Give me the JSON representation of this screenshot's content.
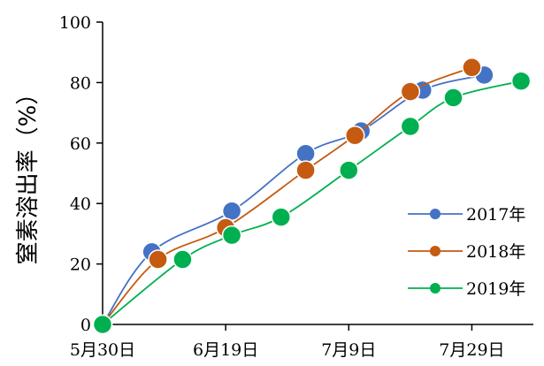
{
  "chart_data": {
    "type": "line",
    "ylabel": "窒素溶出率（%）",
    "xlabel": "",
    "x_ticks": [
      {
        "label": "5月30日",
        "day": 0
      },
      {
        "label": "6月19日",
        "day": 20
      },
      {
        "label": "7月9日",
        "day": 40
      },
      {
        "label": "7月29日",
        "day": 60
      }
    ],
    "xlim": [
      0,
      70
    ],
    "ylim": [
      0,
      100
    ],
    "yticks": [
      0,
      20,
      40,
      60,
      80,
      100
    ],
    "legend_position": "right",
    "series": [
      {
        "name": "2017年",
        "color": "#4472C4",
        "points": [
          [
            0,
            0
          ],
          [
            8,
            24
          ],
          [
            21,
            37.5
          ],
          [
            33,
            56.5
          ],
          [
            42,
            64
          ],
          [
            52,
            77.5
          ],
          [
            62,
            82.5
          ]
        ]
      },
      {
        "name": "2018年",
        "color": "#C55A11",
        "points": [
          [
            0,
            0
          ],
          [
            9,
            21.5
          ],
          [
            20,
            32
          ],
          [
            33,
            51
          ],
          [
            41,
            62.5
          ],
          [
            50,
            77
          ],
          [
            60,
            85
          ]
        ]
      },
      {
        "name": "2019年",
        "color": "#00B050",
        "points": [
          [
            0,
            0
          ],
          [
            13,
            21.5
          ],
          [
            21,
            29.5
          ],
          [
            29,
            35.5
          ],
          [
            40,
            51
          ],
          [
            50,
            65.5
          ],
          [
            57,
            75
          ],
          [
            68,
            80.5
          ]
        ]
      }
    ]
  }
}
